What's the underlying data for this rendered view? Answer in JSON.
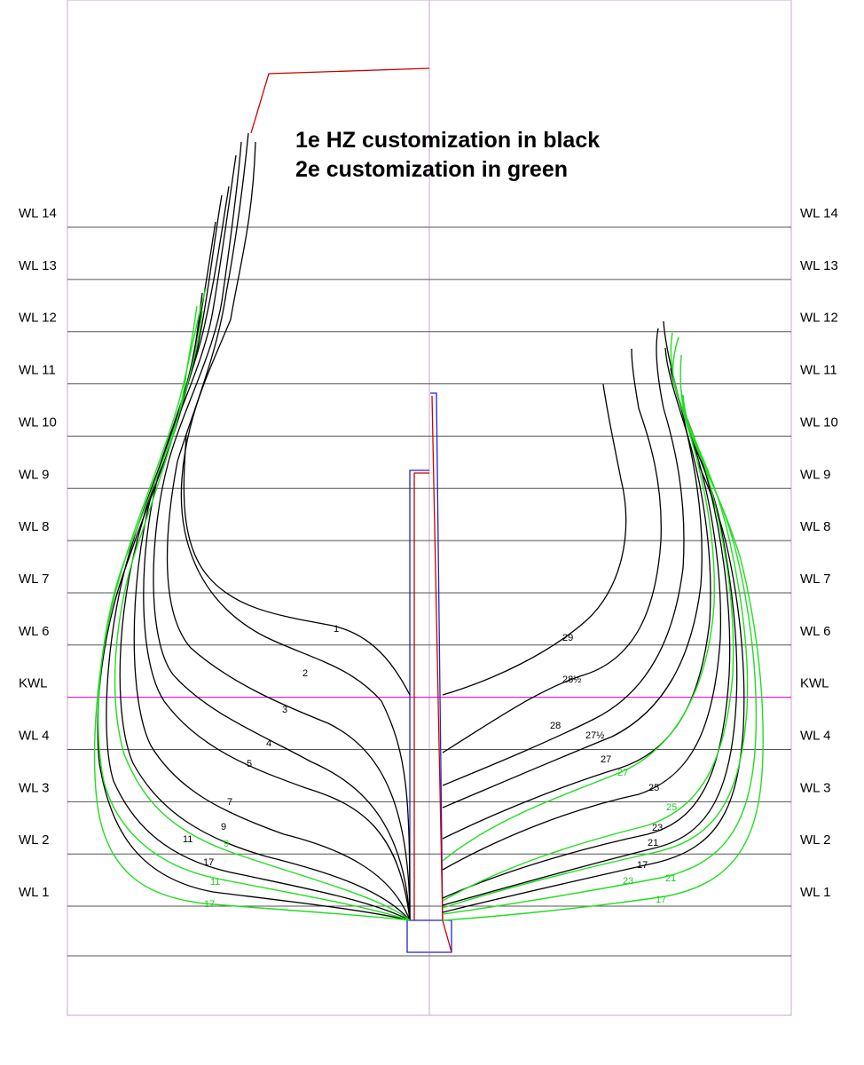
{
  "caption": {
    "line1": "1e HZ customization in black",
    "line2": "2e customization in green"
  },
  "waterlines": [
    "WL 14",
    "WL 13",
    "WL 12",
    "WL 11",
    "WL 10",
    "WL 9",
    "WL 8",
    "WL 7",
    "WL 6",
    "KWL",
    "WL 4",
    "WL 3",
    "WL 2",
    "WL 1"
  ],
  "frames_black_left": [
    "1",
    "2",
    "3",
    "4",
    "5",
    "7",
    "9",
    "11",
    "17"
  ],
  "frames_green_left": [
    "9",
    "11",
    "17"
  ],
  "frames_black_right": [
    "29",
    "28½",
    "28",
    "27½",
    "27",
    "25",
    "23",
    "21",
    "17"
  ],
  "frames_green_right": [
    "27",
    "25",
    "23",
    "21",
    "17"
  ],
  "colors": {
    "black_sections": "#000000",
    "green_sections": "#22dd22",
    "waterline": "#555555",
    "kwl": "#dd22dd",
    "keel_outline": "#2222cc",
    "stem_post": "#cc0000",
    "border": "#c9a6cf"
  }
}
